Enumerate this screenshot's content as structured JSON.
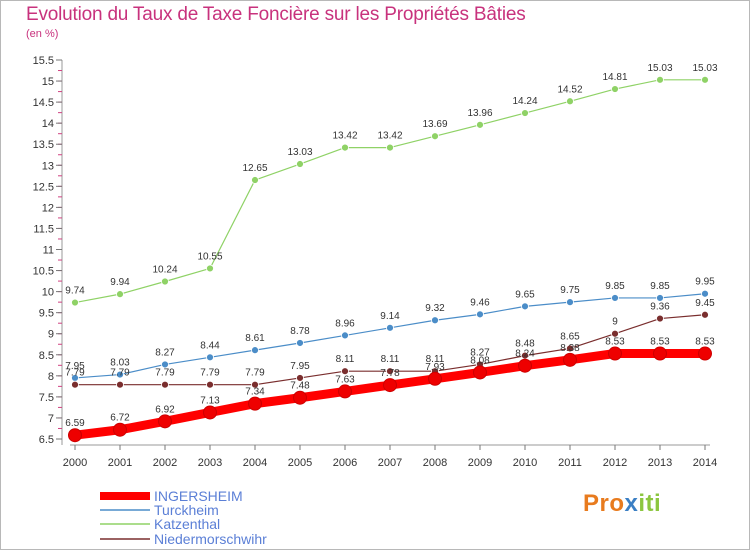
{
  "title": "Evolution du Taux de Taxe Foncière sur les Propriétés Bâties",
  "subtitle": "(en %)",
  "logo": {
    "p1": "Pro",
    "p2": "x",
    "p3": "iti"
  },
  "chart_data": {
    "type": "line",
    "title": "Evolution du Taux de Taxe Foncière sur les Propriétés Bâties",
    "ylabel": "(en %)",
    "xlabel": "",
    "ylim": [
      6.5,
      15.5
    ],
    "yticks": [
      6.5,
      7,
      7.5,
      8,
      8.5,
      9,
      9.5,
      10,
      10.5,
      11,
      11.5,
      12,
      12.5,
      13,
      13.5,
      14,
      14.5,
      15,
      15.5
    ],
    "x": [
      2000,
      2001,
      2002,
      2003,
      2004,
      2005,
      2006,
      2007,
      2008,
      2009,
      2010,
      2011,
      2012,
      2013,
      2014
    ],
    "grid": false,
    "legend": "bottom-left",
    "series": [
      {
        "name": "INGERSHEIM",
        "color": "#ff0000",
        "values": [
          6.59,
          6.72,
          6.92,
          7.13,
          7.34,
          7.48,
          7.63,
          7.78,
          7.93,
          8.08,
          8.24,
          8.38,
          8.53,
          8.53,
          8.53
        ]
      },
      {
        "name": "Turckheim",
        "color": "#4b8dc8",
        "values": [
          7.95,
          8.03,
          8.27,
          8.44,
          8.61,
          8.78,
          8.96,
          9.14,
          9.32,
          9.46,
          9.65,
          9.75,
          9.85,
          9.85,
          9.95
        ]
      },
      {
        "name": "Katzenthal",
        "color": "#8fd266",
        "values": [
          9.74,
          9.94,
          10.24,
          10.55,
          12.65,
          13.03,
          13.42,
          13.42,
          13.69,
          13.96,
          14.24,
          14.52,
          14.81,
          15.03,
          15.03
        ]
      },
      {
        "name": "Niedermorschwihr",
        "color": "#7a2e2e",
        "values": [
          7.79,
          7.79,
          7.79,
          7.79,
          7.79,
          7.95,
          8.11,
          8.11,
          8.11,
          8.27,
          8.48,
          8.65,
          9,
          9.36,
          9.45
        ]
      }
    ]
  }
}
